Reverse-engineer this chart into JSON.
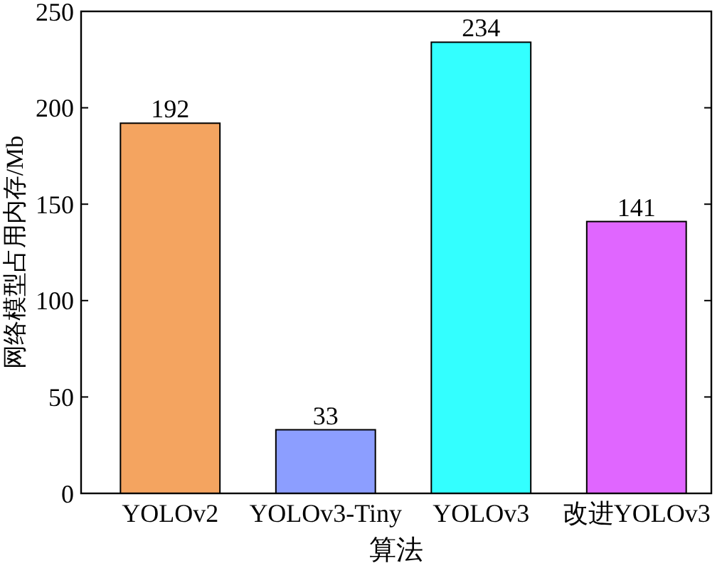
{
  "chart_data": {
    "type": "bar",
    "xlabel": "算法",
    "ylabel": "网络模型占用内存/Mb",
    "categories": [
      "YOLOv2",
      "YOLOv3-Tiny",
      "YOLOv3",
      "改进YOLOv3"
    ],
    "values": [
      192,
      33,
      234,
      141
    ],
    "colors": [
      "#f4a460",
      "#8c9eff",
      "#33ffff",
      "#e066ff"
    ],
    "ylim": [
      0,
      250
    ],
    "yticks": [
      0,
      50,
      100,
      150,
      200,
      250
    ],
    "data_labels": true,
    "grid": false
  }
}
